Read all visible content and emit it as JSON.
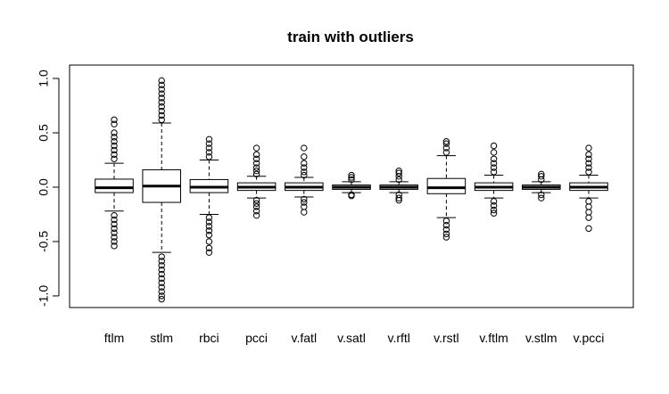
{
  "chart_data": {
    "type": "boxplot",
    "title": "train  with outliers",
    "categories": [
      "ftlm",
      "stlm",
      "rbci",
      "pcci",
      "v.fatl",
      "v.satl",
      "v.rftl",
      "v.rstl",
      "v.ftlm",
      "v.stlm",
      "v.pcci"
    ],
    "boxes": [
      {
        "whislo": -0.22,
        "q1": -0.05,
        "med": -0.005,
        "q3": 0.074,
        "whishi": 0.22,
        "outliers": [
          0.26,
          0.3,
          0.34,
          0.38,
          0.42,
          0.46,
          0.5,
          0.58,
          0.62,
          -0.26,
          -0.3,
          -0.34,
          -0.38,
          -0.42,
          -0.46,
          -0.5,
          -0.54
        ]
      },
      {
        "whislo": -0.6,
        "q1": -0.14,
        "med": 0.01,
        "q3": 0.16,
        "whishi": 0.59,
        "outliers": [
          0.62,
          0.66,
          0.7,
          0.74,
          0.78,
          0.82,
          0.86,
          0.9,
          0.94,
          0.98,
          -0.64,
          -0.68,
          -0.72,
          -0.76,
          -0.8,
          -0.84,
          -0.88,
          -0.92,
          -0.96,
          -1.0,
          -1.03
        ]
      },
      {
        "whislo": -0.25,
        "q1": -0.05,
        "med": 0.0,
        "q3": 0.07,
        "whishi": 0.25,
        "outliers": [
          0.28,
          0.32,
          0.36,
          0.4,
          0.44,
          -0.28,
          -0.32,
          -0.36,
          -0.4,
          -0.44,
          -0.5,
          -0.56,
          -0.6
        ]
      },
      {
        "whislo": -0.1,
        "q1": -0.03,
        "med": 0.0,
        "q3": 0.04,
        "whishi": 0.1,
        "outliers": [
          0.12,
          0.15,
          0.18,
          0.22,
          0.26,
          0.3,
          0.36,
          -0.12,
          -0.15,
          -0.18,
          -0.22,
          -0.26
        ]
      },
      {
        "whislo": -0.09,
        "q1": -0.03,
        "med": 0.0,
        "q3": 0.04,
        "whishi": 0.09,
        "outliers": [
          0.11,
          0.14,
          0.18,
          0.22,
          0.28,
          0.36,
          -0.11,
          -0.14,
          -0.18,
          -0.23
        ]
      },
      {
        "whislo": -0.05,
        "q1": -0.02,
        "med": 0.0,
        "q3": 0.02,
        "whishi": 0.05,
        "outliers": [
          0.07,
          0.09,
          0.11,
          -0.07,
          -0.08
        ]
      },
      {
        "whislo": -0.05,
        "q1": -0.02,
        "med": 0.0,
        "q3": 0.02,
        "whishi": 0.05,
        "outliers": [
          0.07,
          0.1,
          0.13,
          0.15,
          -0.07,
          -0.1,
          -0.12
        ]
      },
      {
        "whislo": -0.28,
        "q1": -0.06,
        "med": -0.005,
        "q3": 0.08,
        "whishi": 0.29,
        "outliers": [
          0.32,
          0.36,
          0.4,
          0.42,
          -0.31,
          -0.35,
          -0.39,
          -0.43,
          -0.46
        ]
      },
      {
        "whislo": -0.1,
        "q1": -0.03,
        "med": 0.0,
        "q3": 0.04,
        "whishi": 0.11,
        "outliers": [
          0.14,
          0.18,
          0.22,
          0.26,
          0.32,
          0.38,
          -0.13,
          -0.17,
          -0.21,
          -0.24
        ]
      },
      {
        "whislo": -0.05,
        "q1": -0.02,
        "med": 0.0,
        "q3": 0.02,
        "whishi": 0.05,
        "outliers": [
          0.07,
          0.1,
          0.12,
          -0.07,
          -0.1
        ]
      },
      {
        "whislo": -0.1,
        "q1": -0.03,
        "med": 0.0,
        "q3": 0.04,
        "whishi": 0.11,
        "outliers": [
          0.14,
          0.18,
          0.22,
          0.26,
          0.3,
          0.36,
          -0.13,
          -0.18,
          -0.23,
          -0.28,
          -0.38
        ]
      }
    ],
    "ylim": [
      -1.107,
      1.123
    ],
    "yticks": [
      {
        "value": -1,
        "label": "-1.0"
      },
      -0.5,
      {
        "value": 0,
        "label": "0.0"
      },
      0.5,
      {
        "value": 1,
        "label": "1.0"
      }
    ]
  }
}
